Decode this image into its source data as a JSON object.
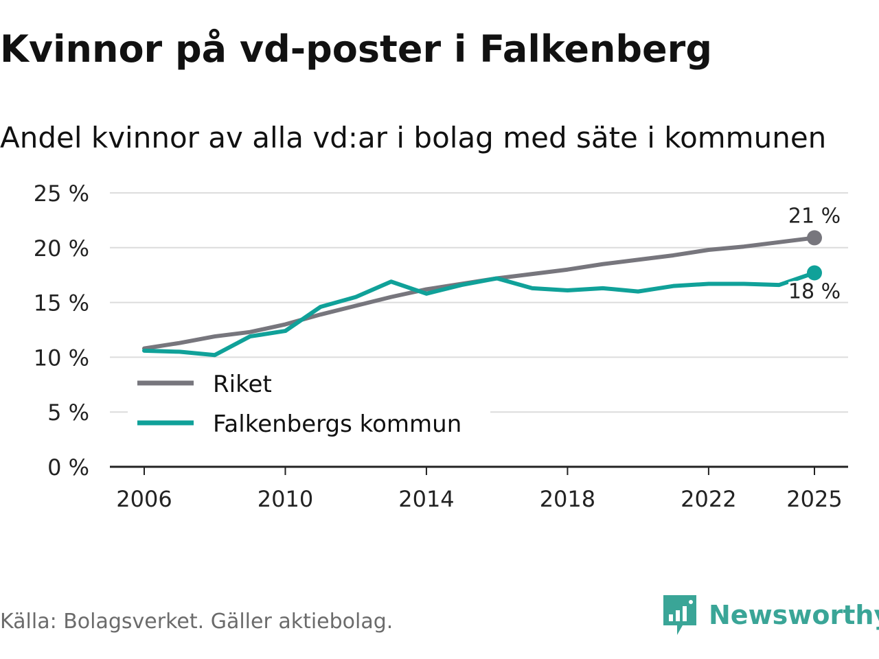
{
  "title": "Kvinnor på vd-poster i Falkenberg",
  "subtitle": "Andel kvinnor av alla vd:ar i bolag med säte i kommunen",
  "source": "Källa: Bolagsverket. Gäller aktiebolag.",
  "brand": {
    "name": "Newsworthy",
    "logo_icon": "bar-chart-speech-bubble-icon",
    "color": "#3aa597"
  },
  "chart_data": {
    "type": "line",
    "title": "Kvinnor på vd-poster i Falkenberg",
    "subtitle": "Andel kvinnor av alla vd:ar i bolag med säte i kommunen",
    "xlabel": "",
    "ylabel": "",
    "xlim": [
      2006,
      2025
    ],
    "ylim": [
      0,
      25
    ],
    "xticks": [
      2006,
      2010,
      2014,
      2018,
      2022,
      2025
    ],
    "xtick_labels": [
      "2006",
      "2010",
      "2014",
      "2018",
      "2022",
      "2025"
    ],
    "yticks": [
      0,
      5,
      10,
      15,
      20,
      25
    ],
    "ytick_labels": [
      "0 %",
      "5 %",
      "10 %",
      "15 %",
      "20 %",
      "25 %"
    ],
    "grid": true,
    "legend_position": "bottom-left",
    "x": [
      2006,
      2007,
      2008,
      2009,
      2010,
      2011,
      2012,
      2013,
      2014,
      2015,
      2016,
      2017,
      2018,
      2019,
      2020,
      2021,
      2022,
      2023,
      2024,
      2025
    ],
    "series": [
      {
        "name": "Riket",
        "color": "#77767d",
        "values": [
          10.8,
          11.3,
          11.9,
          12.3,
          13.0,
          13.9,
          14.7,
          15.5,
          16.2,
          16.7,
          17.2,
          17.6,
          18.0,
          18.5,
          18.9,
          19.3,
          19.8,
          20.1,
          20.5,
          20.9
        ],
        "end_label": "21 %"
      },
      {
        "name": "Falkenbergs kommun",
        "color": "#10a199",
        "values": [
          10.6,
          10.5,
          10.2,
          11.9,
          12.4,
          14.6,
          15.5,
          16.9,
          15.8,
          16.6,
          17.2,
          16.3,
          16.1,
          16.3,
          16.0,
          16.5,
          16.7,
          16.7,
          16.6,
          17.7
        ],
        "end_label": "18 %"
      }
    ]
  }
}
